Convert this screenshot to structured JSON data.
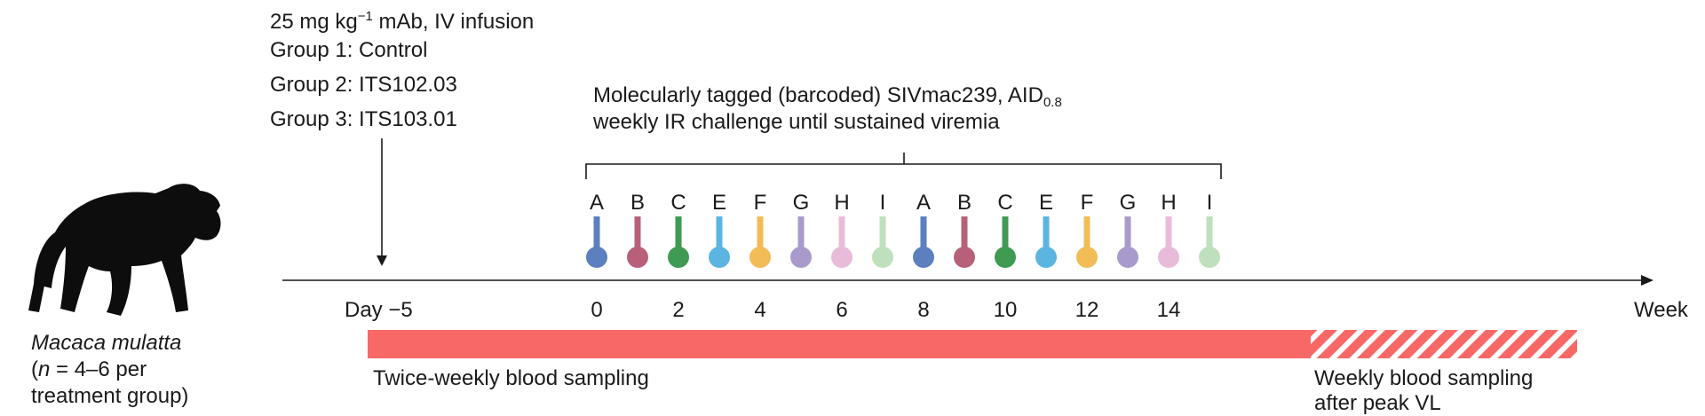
{
  "animal": {
    "species": "Macaca mulatta",
    "n_symbol": "n",
    "n_rest": " = 4–6 per",
    "group_line": "treatment group)",
    "paren_open": "("
  },
  "dosing": {
    "dose_pre": "25 mg kg",
    "dose_sup": "−1",
    "dose_post": " mAb, IV infusion",
    "groups": [
      "Group 1: Control",
      "Group 2: ITS102.03",
      "Group 3: ITS103.01"
    ]
  },
  "challenge": {
    "line1_pre": "Molecularly tagged (barcoded) SIVmac239, AID",
    "line1_sub": "0.8",
    "line2": "weekly IR challenge until sustained viremia",
    "letters": [
      "A",
      "B",
      "C",
      "E",
      "F",
      "G",
      "H",
      "I",
      "A",
      "B",
      "C",
      "E",
      "F",
      "G",
      "H",
      "I"
    ],
    "colors": [
      "#5b7fbf",
      "#b8607a",
      "#3f9a52",
      "#5bb5e0",
      "#f2bc57",
      "#a89bcc",
      "#e8bcd8",
      "#bfe0bd",
      "#5b7fbf",
      "#b8607a",
      "#3f9a52",
      "#5bb5e0",
      "#f2bc57",
      "#a89bcc",
      "#e8bcd8",
      "#bfe0bd"
    ]
  },
  "timeline": {
    "day_label": "Day −5",
    "ticks": [
      "0",
      "2",
      "4",
      "6",
      "8",
      "10",
      "12",
      "14"
    ],
    "unit": "Week"
  },
  "sampling": {
    "twice_weekly": "Twice-weekly blood sampling",
    "weekly_line1": "Weekly blood sampling",
    "weekly_line2": "after peak VL",
    "bar_color": "#f76866"
  }
}
